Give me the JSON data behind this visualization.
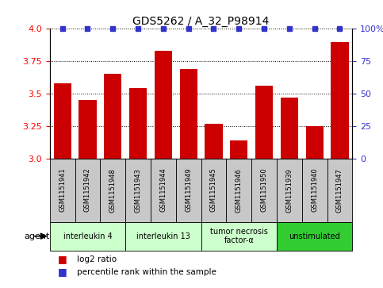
{
  "title": "GDS5262 / A_32_P98914",
  "samples": [
    "GSM1151941",
    "GSM1151942",
    "GSM1151948",
    "GSM1151943",
    "GSM1151944",
    "GSM1151949",
    "GSM1151945",
    "GSM1151946",
    "GSM1151950",
    "GSM1151939",
    "GSM1151940",
    "GSM1151947"
  ],
  "log2_values": [
    3.58,
    3.45,
    3.65,
    3.54,
    3.83,
    3.69,
    3.27,
    3.14,
    3.56,
    3.47,
    3.25,
    3.9
  ],
  "bar_color": "#cc0000",
  "dot_color": "#3333cc",
  "ylim_left": [
    3.0,
    4.0
  ],
  "ylim_right": [
    0,
    100
  ],
  "yticks_left": [
    3.0,
    3.25,
    3.5,
    3.75,
    4.0
  ],
  "yticks_right": [
    0,
    25,
    50,
    75,
    100
  ],
  "groups": [
    {
      "label": "interleukin 4",
      "start": 0,
      "end": 3,
      "color": "#ccffcc"
    },
    {
      "label": "interleukin 13",
      "start": 3,
      "end": 6,
      "color": "#ccffcc"
    },
    {
      "label": "tumor necrosis\nfactor-α",
      "start": 6,
      "end": 9,
      "color": "#ccffcc"
    },
    {
      "label": "unstimulated",
      "start": 9,
      "end": 12,
      "color": "#33cc33"
    }
  ],
  "legend_log2_label": "log2 ratio",
  "legend_pct_label": "percentile rank within the sample",
  "agent_label": "agent",
  "sample_box_color": "#c8c8c8",
  "plot_bg": "#ffffff"
}
